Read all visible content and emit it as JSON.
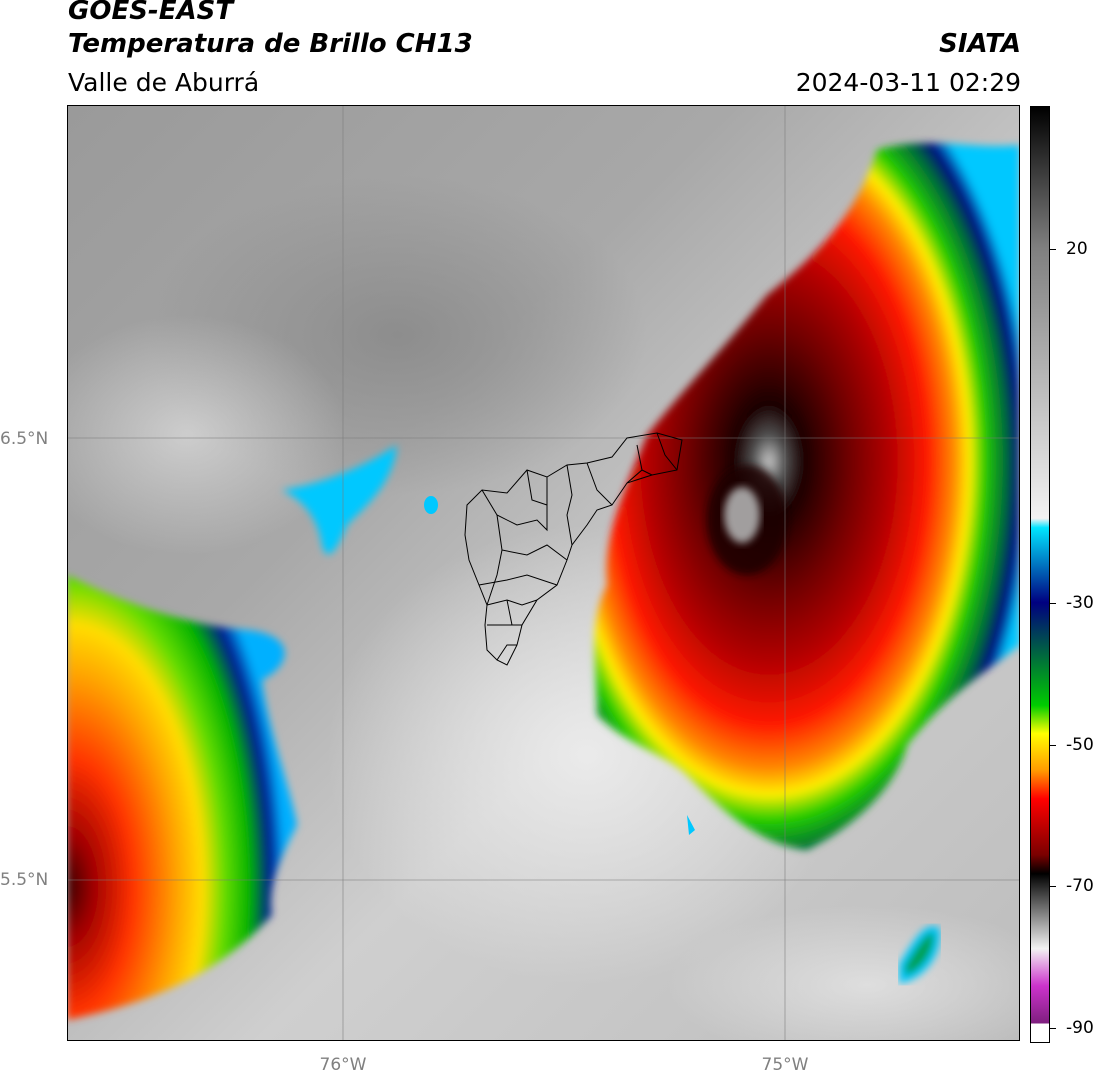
{
  "header": {
    "satellite": "GOES-EAST",
    "product": "Temperatura de Brillo CH13",
    "region": "Valle de Aburrá",
    "source": "SIATA",
    "datetime": "2024-03-11 02:29"
  },
  "map": {
    "lat_labels": [
      "6.5°N",
      "5.5°N"
    ],
    "lon_labels": [
      "76°W",
      "75°W"
    ]
  },
  "colorbar": {
    "ticks": [
      "20",
      "-30",
      "-50",
      "-70",
      "-90"
    ],
    "colors": {
      "cold_black": "#000000",
      "dark_red": "#7a0000",
      "red": "#ff0000",
      "orange": "#ff9900",
      "yellow": "#ffff00",
      "green": "#00cc00",
      "dark_blue": "#000080",
      "cyan": "#00e5ff",
      "white": "#f2f2f2",
      "gray": "#7f7f7f",
      "magenta": "#cc33cc"
    }
  }
}
